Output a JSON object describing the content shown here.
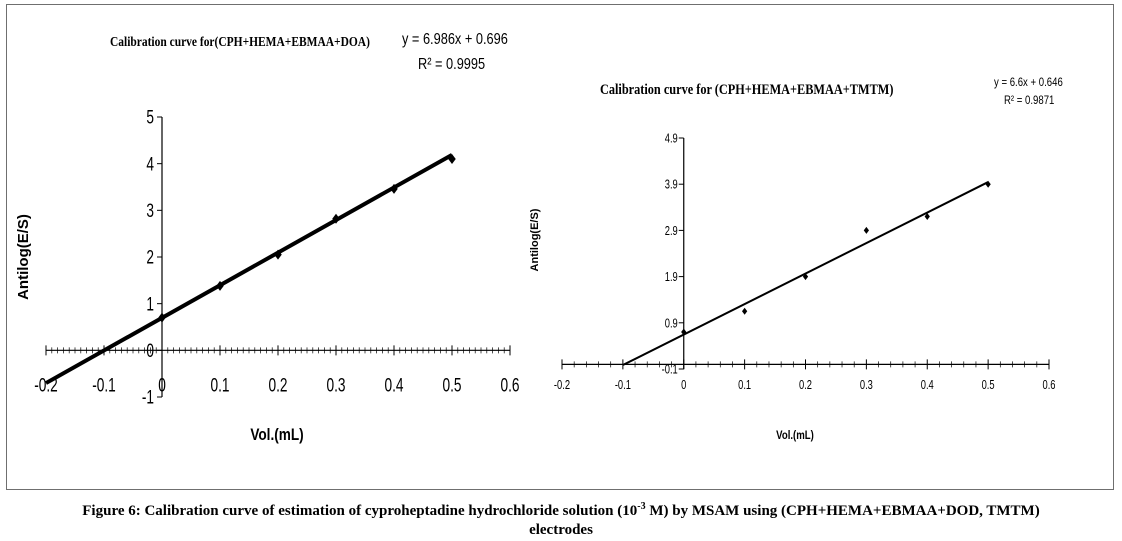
{
  "chart_data": [
    {
      "type": "scatter",
      "title": "Calibration curve for(CPH+HEMA+EBMAA+DOA)",
      "equation": "y = 6.986x + 0.696",
      "r2": "R² = 0.9995",
      "xlabel": "Vol.(mL)",
      "ylabel": "Antilog(E/S)",
      "xlim": [
        -0.2,
        0.6
      ],
      "ylim": [
        -1,
        5
      ],
      "x_ticks": [
        "-0.2",
        "-0.1",
        "0",
        "0.1",
        "0.2",
        "0.3",
        "0.4",
        "0.5",
        "0.6"
      ],
      "y_ticks": [
        "-1",
        "0",
        "1",
        "2",
        "3",
        "4",
        "5"
      ],
      "series": [
        {
          "x": [
            0,
            0.1,
            0.2,
            0.3,
            0.4,
            0.5
          ],
          "y": [
            0.7,
            1.38,
            2.05,
            2.82,
            3.46,
            4.1
          ]
        }
      ],
      "trendline": {
        "slope": 6.986,
        "intercept": 0.696,
        "x_range": [
          -0.2,
          0.5
        ]
      },
      "grid": false,
      "color": "#000000"
    },
    {
      "type": "scatter",
      "title": "Calibration curve for (CPH+HEMA+EBMAA+TMTM)",
      "equation": "y = 6.6x + 0.646",
      "r2": "R² = 0.9871",
      "xlabel": "Vol.(mL)",
      "ylabel": "Antilog(E/S)",
      "xlim": [
        -0.2,
        0.6
      ],
      "ylim": [
        -0.1,
        4.9
      ],
      "x_ticks": [
        "-0.2",
        "-0.1",
        "0",
        "0.1",
        "0.2",
        "0.3",
        "0.4",
        "0.5",
        "0.6"
      ],
      "y_ticks": [
        "-0.1",
        "0.9",
        "1.9",
        "2.9",
        "3.9",
        "4.9"
      ],
      "series": [
        {
          "x": [
            0,
            0.1,
            0.2,
            0.3,
            0.4,
            0.5
          ],
          "y": [
            0.7,
            1.15,
            1.9,
            2.9,
            3.2,
            3.9
          ]
        }
      ],
      "trendline": {
        "slope": 6.6,
        "intercept": 0.646,
        "x_range": [
          -0.1,
          0.5
        ]
      },
      "grid": false,
      "color": "#000000"
    }
  ],
  "caption": {
    "part1": "Figure 6: Calibration curve of estimation of cyproheptadine hydrochloride solution (10",
    "sup": "-3",
    "part2": " M) by MSAM using (CPH+HEMA+EBMAA+DOD, TMTM)",
    "line2": "electrodes"
  }
}
